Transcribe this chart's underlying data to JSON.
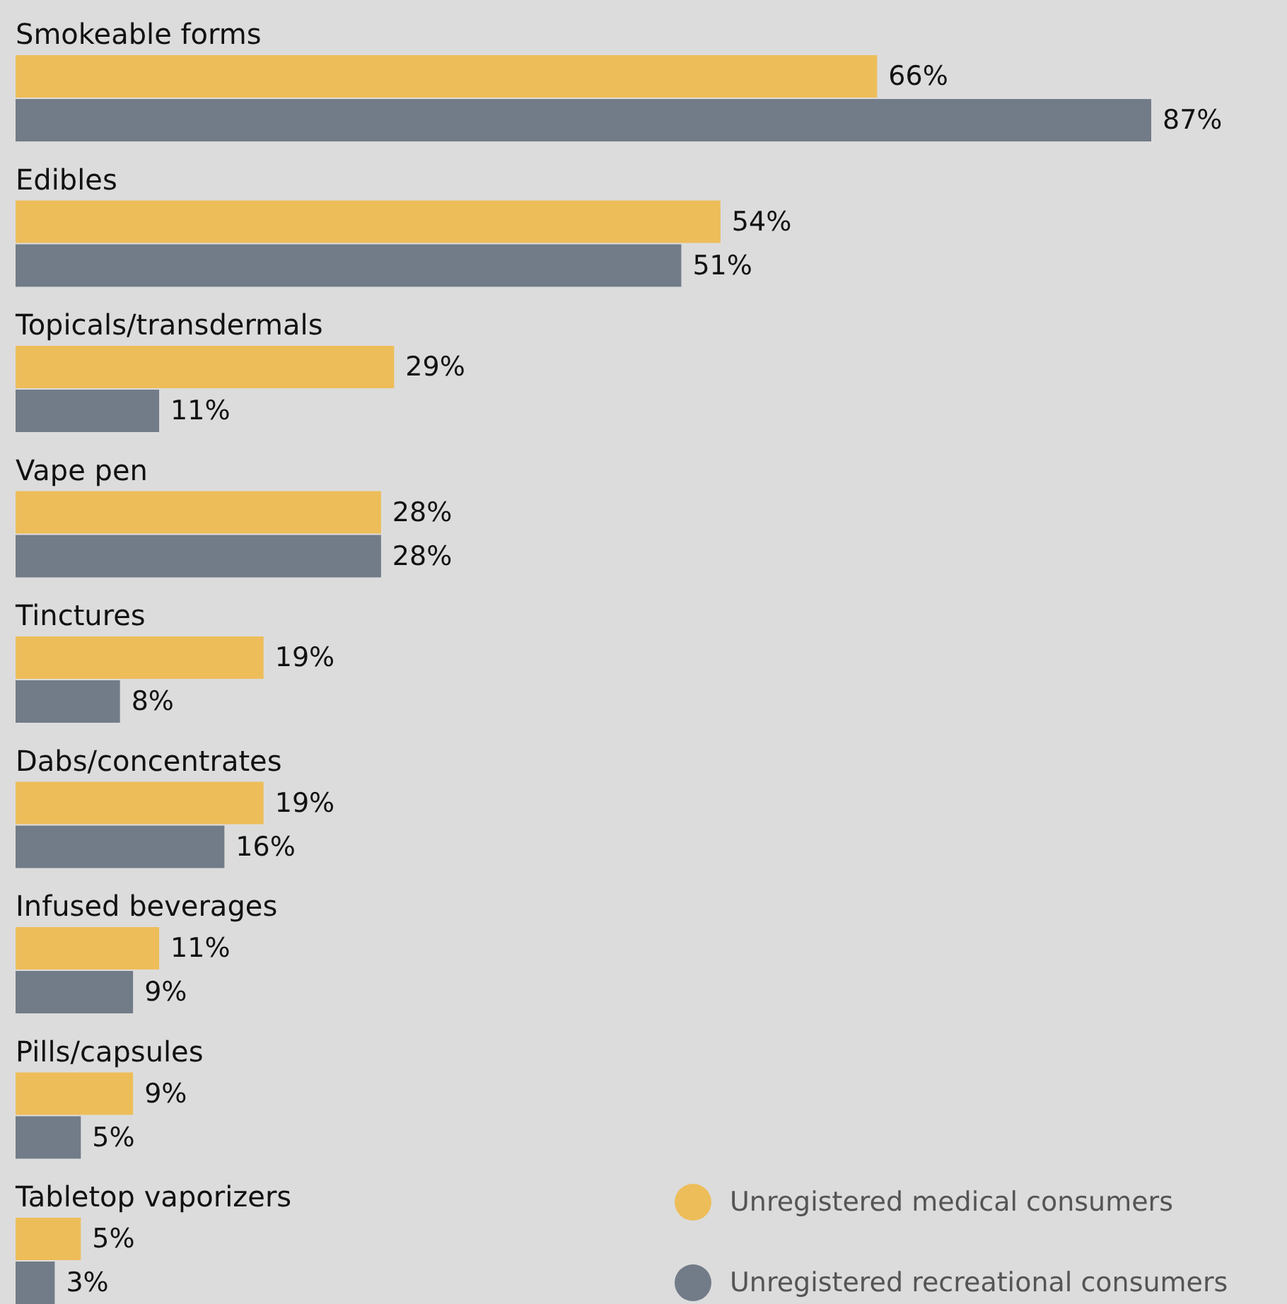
{
  "chart_data": {
    "type": "bar",
    "orientation": "horizontal",
    "categories": [
      "Smokeable forms",
      "Edibles",
      "Topicals/transdermals",
      "Vape pen",
      "Tinctures",
      "Dabs/concentrates",
      "Infused beverages",
      "Pills/capsules",
      "Tabletop vaporizers"
    ],
    "series": [
      {
        "name": "Unregistered medical consumers",
        "color": "#edbd5a",
        "values": [
          66,
          54,
          29,
          28,
          19,
          19,
          11,
          9,
          5
        ],
        "value_labels": [
          "66%",
          "54%",
          "29%",
          "28%",
          "19%",
          "19%",
          "11%",
          "9%",
          "5%"
        ]
      },
      {
        "name": "Unregistered recreational consumers",
        "color": "#727b88",
        "values": [
          87,
          51,
          11,
          28,
          8,
          16,
          9,
          5,
          3
        ],
        "value_labels": [
          "87%",
          "51%",
          "11%",
          "28%",
          "8%",
          "16%",
          "9%",
          "5%",
          "3%"
        ]
      }
    ],
    "legend": "bottom right"
  }
}
